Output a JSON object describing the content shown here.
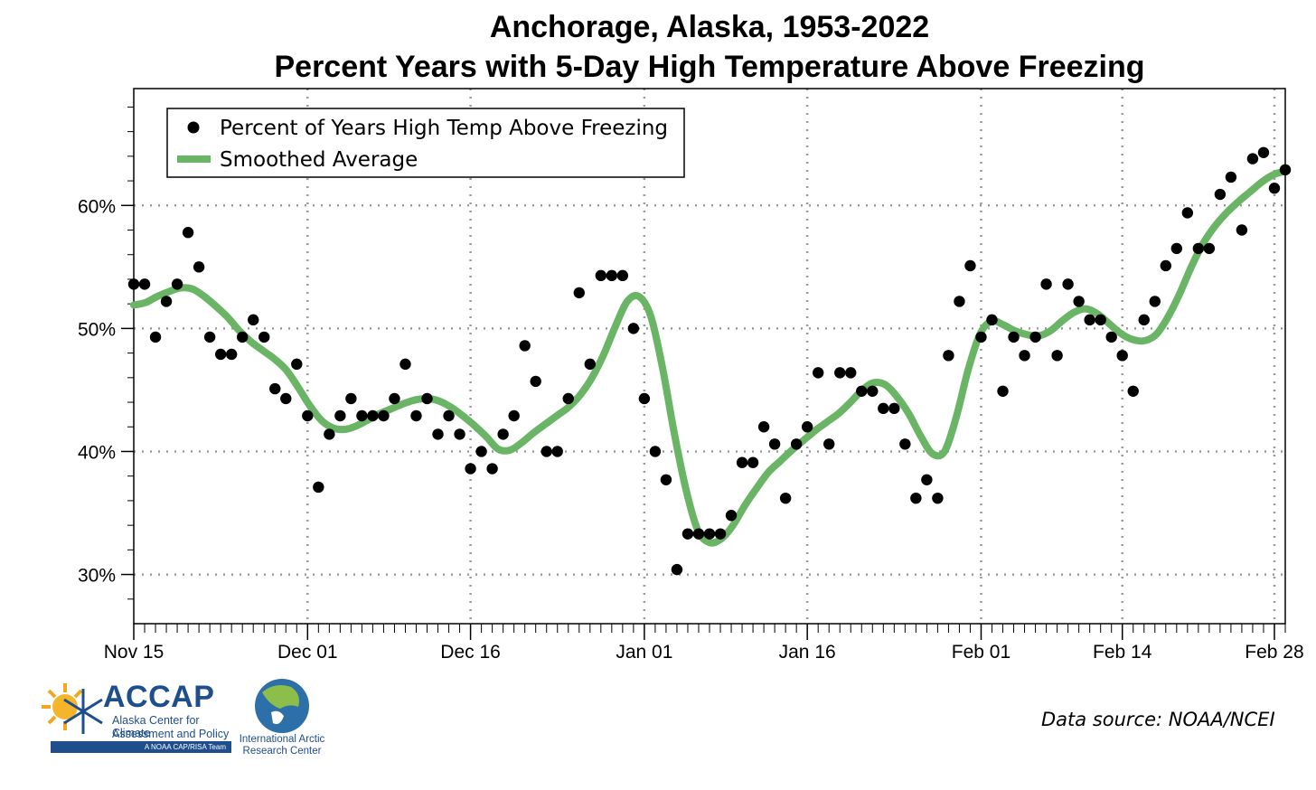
{
  "title_line1": "Anchorage, Alaska, 1953-2022",
  "title_line2": "Percent Years with 5-Day High Temperature Above Freezing",
  "data_source": "Data source: NOAA/NCEI",
  "logos": {
    "accap_name": "ACCAP",
    "accap_sub1": "Alaska Center for Climate",
    "accap_sub2": "Assessment and Policy",
    "accap_tag": "A NOAA CAP/RISA Team",
    "iarc_line1": "International Arctic",
    "iarc_line2": "Research Center"
  },
  "chart_data": {
    "type": "scatter",
    "title": "Anchorage, Alaska, 1953-2022 Percent Years with 5-Day High Temperature Above Freezing",
    "xlabel": "",
    "ylabel": "",
    "x_tick_labels": [
      "Nov 15",
      "Dec 01",
      "Dec 16",
      "Jan 01",
      "Jan 16",
      "Feb 01",
      "Feb 14",
      "Feb 28"
    ],
    "y_tick_labels": [
      "30%",
      "40%",
      "50%",
      "60%"
    ],
    "y_ticks": [
      30,
      40,
      50,
      60
    ],
    "ylim": [
      26.0,
      69.5
    ],
    "x_start_date": "Nov 15",
    "x_end_date": "Feb 28",
    "grid": true,
    "legend_position": "top-left",
    "colors": {
      "points": "#000000",
      "smooth": "#6ab565",
      "grid": "#9a9a9a"
    },
    "series": [
      {
        "name": "Percent of Years High Temp Above Freezing",
        "marker": "circle",
        "values": [
          53.6,
          53.6,
          49.3,
          52.2,
          53.6,
          57.8,
          55.0,
          49.3,
          47.9,
          47.9,
          49.3,
          50.7,
          49.3,
          45.1,
          44.3,
          47.1,
          42.9,
          37.1,
          41.4,
          42.9,
          44.3,
          42.9,
          42.9,
          42.9,
          44.3,
          47.1,
          42.9,
          44.3,
          41.4,
          42.9,
          41.4,
          38.6,
          40.0,
          38.6,
          41.4,
          42.9,
          48.6,
          45.7,
          40.0,
          40.0,
          44.3,
          52.9,
          47.1,
          54.3,
          54.3,
          54.3,
          50.0,
          44.3,
          40.0,
          37.7,
          30.4,
          33.3,
          33.3,
          33.3,
          33.3,
          34.8,
          39.1,
          39.1,
          42.0,
          40.6,
          36.2,
          40.6,
          42.0,
          46.4,
          40.6,
          46.4,
          46.4,
          44.9,
          44.9,
          43.5,
          43.5,
          40.6,
          36.2,
          37.7,
          36.2,
          47.8,
          52.2,
          55.1,
          49.3,
          50.7,
          44.9,
          49.3,
          47.8,
          49.3,
          53.6,
          47.8,
          53.6,
          52.2,
          50.7,
          50.7,
          49.3,
          47.8,
          44.9,
          50.7,
          52.2,
          55.1,
          56.5,
          59.4,
          56.5,
          56.5,
          60.9,
          62.3,
          58.0,
          63.8,
          64.3,
          61.4,
          62.9
        ]
      },
      {
        "name": "Smoothed Average",
        "line": true,
        "values": [
          51.9,
          52.1,
          52.6,
          53.0,
          53.3,
          53.2,
          52.6,
          51.8,
          50.9,
          49.8,
          48.9,
          48.2,
          47.5,
          46.6,
          45.2,
          43.7,
          42.5,
          41.9,
          41.8,
          42.1,
          42.6,
          43.1,
          43.5,
          43.9,
          44.2,
          44.3,
          44.1,
          43.6,
          42.9,
          42.1,
          41.2,
          40.2,
          40.1,
          40.7,
          41.5,
          42.2,
          42.9,
          43.6,
          44.6,
          46.0,
          47.9,
          50.2,
          52.2,
          52.6,
          51.0,
          46.8,
          41.5,
          36.9,
          33.6,
          32.6,
          32.9,
          34.0,
          35.6,
          37.0,
          38.3,
          39.2,
          40.1,
          40.9,
          41.7,
          42.4,
          43.1,
          44.0,
          45.0,
          45.6,
          45.4,
          44.4,
          43.0,
          41.2,
          39.8,
          40.0,
          42.8,
          46.6,
          49.5,
          50.6,
          50.3,
          49.8,
          49.5,
          49.4,
          49.8,
          50.6,
          51.3,
          51.6,
          51.2,
          50.4,
          49.6,
          49.1,
          49.0,
          49.5,
          50.9,
          52.8,
          55.0,
          56.9,
          58.3,
          59.4,
          60.3,
          61.1,
          61.9,
          62.5,
          62.8
        ]
      }
    ],
    "legend_entries": [
      "Percent of Years High Temp Above Freezing",
      "Smoothed Average"
    ]
  }
}
